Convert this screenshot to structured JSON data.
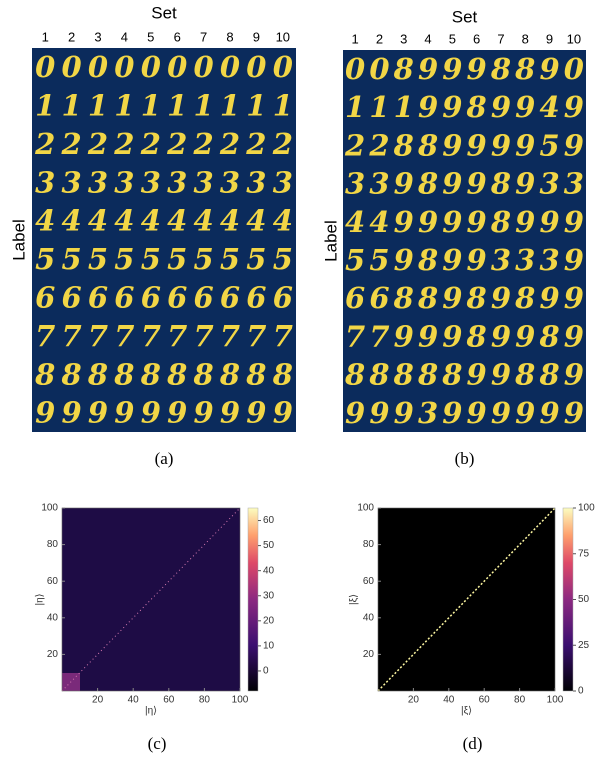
{
  "panels": [
    {
      "caption": "(a)",
      "column_title": "Set",
      "row_title": "Label",
      "columns": [
        1,
        2,
        3,
        4,
        5,
        6,
        7,
        8,
        9,
        10
      ],
      "grid": [
        [
          0,
          0,
          0,
          0,
          0,
          0,
          0,
          0,
          0,
          0
        ],
        [
          1,
          1,
          1,
          1,
          1,
          1,
          1,
          1,
          1,
          1
        ],
        [
          2,
          2,
          2,
          2,
          2,
          2,
          2,
          2,
          2,
          2
        ],
        [
          3,
          3,
          3,
          3,
          3,
          3,
          3,
          3,
          3,
          3
        ],
        [
          4,
          4,
          4,
          4,
          4,
          4,
          4,
          4,
          4,
          4
        ],
        [
          5,
          5,
          5,
          5,
          5,
          5,
          5,
          5,
          5,
          5
        ],
        [
          6,
          6,
          6,
          6,
          6,
          6,
          6,
          6,
          6,
          6
        ],
        [
          7,
          7,
          7,
          7,
          7,
          7,
          7,
          7,
          7,
          7
        ],
        [
          8,
          8,
          8,
          8,
          8,
          8,
          8,
          8,
          8,
          8
        ],
        [
          9,
          9,
          9,
          9,
          9,
          9,
          9,
          9,
          9,
          9
        ]
      ]
    },
    {
      "caption": "(b)",
      "column_title": "Set",
      "row_title": "Label",
      "columns": [
        1,
        2,
        3,
        4,
        5,
        6,
        7,
        8,
        9,
        10
      ],
      "grid": [
        [
          0,
          0,
          8,
          9,
          9,
          9,
          8,
          8,
          9,
          0
        ],
        [
          1,
          1,
          1,
          9,
          9,
          8,
          9,
          9,
          4,
          9
        ],
        [
          2,
          2,
          8,
          8,
          9,
          9,
          9,
          9,
          5,
          9
        ],
        [
          3,
          3,
          9,
          8,
          9,
          9,
          8,
          9,
          3,
          3
        ],
        [
          4,
          4,
          9,
          9,
          9,
          9,
          8,
          9,
          9,
          9
        ],
        [
          5,
          5,
          9,
          8,
          9,
          9,
          3,
          3,
          3,
          9
        ],
        [
          6,
          6,
          8,
          8,
          9,
          8,
          9,
          8,
          9,
          9
        ],
        [
          7,
          7,
          9,
          9,
          9,
          8,
          9,
          9,
          8,
          9
        ],
        [
          8,
          8,
          8,
          8,
          8,
          9,
          9,
          8,
          8,
          9
        ],
        [
          9,
          9,
          9,
          3,
          9,
          9,
          9,
          9,
          9,
          9
        ]
      ]
    },
    {
      "caption": "(c)",
      "x_label": "|η⟩",
      "y_label": "|η⟩",
      "xlim": [
        0,
        100
      ],
      "ylim": [
        0,
        100
      ],
      "xticks": [
        20,
        40,
        60,
        80,
        100
      ],
      "yticks": [
        20,
        40,
        60,
        80,
        100
      ],
      "colorbar_lim": [
        -8,
        65
      ],
      "colorbar_ticks": [
        0,
        10,
        20,
        30,
        40,
        50,
        60
      ]
    },
    {
      "caption": "(d)",
      "x_label": "|ξ⟩",
      "y_label": "|ξ⟩",
      "xlim": [
        0,
        100
      ],
      "ylim": [
        0,
        100
      ],
      "xticks": [
        20,
        40,
        60,
        80,
        100
      ],
      "yticks": [
        20,
        40,
        60,
        80,
        100
      ],
      "colorbar_lim": [
        0,
        100
      ],
      "colorbar_ticks": [
        0,
        25,
        50,
        75,
        100
      ]
    }
  ]
}
